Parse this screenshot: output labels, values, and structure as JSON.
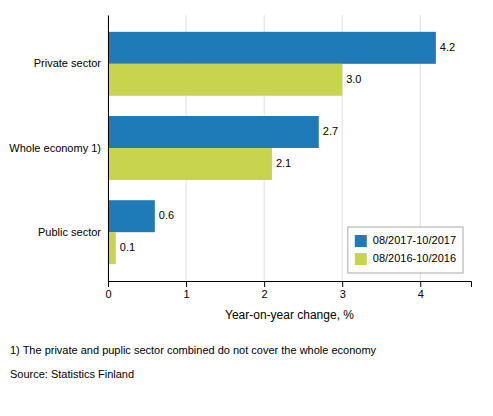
{
  "chart_data": {
    "type": "bar",
    "orientation": "horizontal",
    "categories": [
      "Private sector",
      "Whole economy 1)",
      "Public sector"
    ],
    "series": [
      {
        "name": "08/2017-10/2017",
        "color": "#1f7bb8",
        "values": [
          4.2,
          2.7,
          0.6
        ],
        "value_labels": [
          "4.2",
          "2.7",
          "0.6"
        ]
      },
      {
        "name": "08/2016-10/2016",
        "color": "#c8d44e",
        "values": [
          3.0,
          2.1,
          0.1
        ],
        "value_labels": [
          "3.0",
          "2.1",
          "0.1"
        ]
      }
    ],
    "xlabel": "Year-on-year change, %",
    "xlim": [
      0,
      4.65
    ],
    "xticks": [
      0,
      1,
      2,
      3,
      4
    ],
    "grid": true,
    "legend": "lower right",
    "data_labels": true,
    "annotations": [
      "1) The private and puplic sector combined do not cover the whole economy",
      "Source: Statistics Finland"
    ]
  }
}
